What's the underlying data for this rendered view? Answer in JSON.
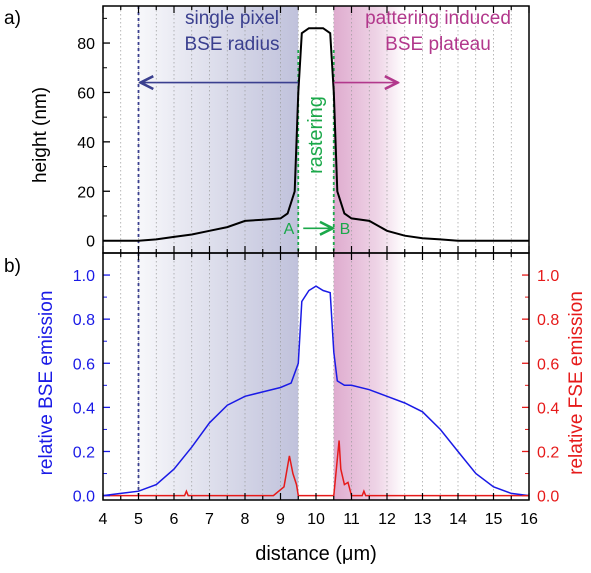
{
  "chart_data": [
    {
      "panel_label": "a)",
      "type": "line",
      "ylabel": "height (nm)",
      "ylim": [
        -5,
        95
      ],
      "yticks": [
        0,
        20,
        40,
        60,
        80
      ],
      "xlim": [
        4,
        16
      ],
      "xticks": [
        4,
        5,
        6,
        7,
        8,
        9,
        10,
        11,
        12,
        13,
        14,
        15,
        16
      ],
      "grid": "vertical dotted",
      "series": [
        {
          "color": "#000000",
          "x": [
            4,
            5,
            5.5,
            6,
            6.5,
            7,
            7.5,
            8,
            8.5,
            9,
            9.2,
            9.4,
            9.5,
            9.6,
            9.8,
            10,
            10.2,
            10.4,
            10.5,
            10.6,
            10.8,
            11,
            11.5,
            12,
            12.5,
            13,
            13.5,
            14,
            15,
            16
          ],
          "y": [
            0,
            0,
            0.5,
            1.5,
            2.5,
            4,
            5.5,
            8,
            8.5,
            9,
            11,
            20,
            60,
            84,
            86,
            86,
            86,
            84,
            60,
            20,
            11,
            9,
            8,
            4,
            2,
            1,
            0.5,
            0,
            0,
            0
          ]
        }
      ],
      "annotations": {
        "left_region_line1": "single pixel",
        "left_region_line2": "BSE radius",
        "right_region_line1": "pattering induced",
        "right_region_line2": "BSE plateau",
        "rastering": "rastering",
        "point_a": "A",
        "point_b": "B"
      },
      "regions": [
        {
          "x": [
            5,
            9.5
          ],
          "color": "#2b2f7d"
        },
        {
          "x": [
            10.5,
            12.5
          ],
          "color": "#a7327e"
        }
      ],
      "markers": {
        "dashed_line_x": 5,
        "a_x": 9.5,
        "b_x": 10.5,
        "left_arrow_x": [
          5,
          9.5
        ],
        "right_arrow_x": [
          10.5,
          12.3
        ]
      },
      "colors": {
        "left_region": "#3a3f8f",
        "right_region": "#b2388c",
        "rastering": "#1ba84a"
      }
    },
    {
      "panel_label": "b)",
      "type": "line",
      "xlabel": "distance (μm)",
      "ylabel": "relative BSE emission",
      "ylabel_right": "relative FSE emission",
      "xlim": [
        4,
        16
      ],
      "ylim": [
        -0.02,
        1.1
      ],
      "yticks": [
        "0.0",
        "0.2",
        "0.4",
        "0.6",
        "0.8",
        "1.0"
      ],
      "xticks": [
        "4",
        "5",
        "6",
        "7",
        "8",
        "9",
        "10",
        "11",
        "12",
        "13",
        "14",
        "15",
        "16"
      ],
      "grid": "vertical dotted",
      "series": [
        {
          "color": "#1a1ae6",
          "x": [
            4,
            4.5,
            5,
            5.5,
            6,
            6.5,
            7,
            7.5,
            8,
            8.5,
            9,
            9.3,
            9.5,
            9.6,
            9.8,
            10,
            10.2,
            10.4,
            10.5,
            10.6,
            10.8,
            11,
            11.5,
            12,
            12.5,
            13,
            13.5,
            14,
            14.5,
            15,
            15.5,
            16
          ],
          "y": [
            0.0,
            0.01,
            0.02,
            0.05,
            0.12,
            0.22,
            0.33,
            0.41,
            0.45,
            0.47,
            0.49,
            0.51,
            0.6,
            0.88,
            0.93,
            0.95,
            0.93,
            0.92,
            0.65,
            0.52,
            0.5,
            0.5,
            0.48,
            0.45,
            0.42,
            0.38,
            0.3,
            0.2,
            0.1,
            0.04,
            0.01,
            0.0
          ]
        },
        {
          "color": "#e61a1a",
          "axis": "right",
          "x": [
            4,
            6.3,
            6.35,
            6.4,
            8.8,
            9.1,
            9.25,
            9.35,
            9.45,
            9.5,
            10.5,
            10.55,
            10.65,
            10.7,
            10.8,
            10.9,
            11.0,
            11.3,
            11.35,
            11.4,
            16
          ],
          "y": [
            0.0,
            0.0,
            0.02,
            0.0,
            0.0,
            0.04,
            0.18,
            0.1,
            0.05,
            0.0,
            0.0,
            0.08,
            0.25,
            0.12,
            0.05,
            0.06,
            0.0,
            0.0,
            0.02,
            0.0,
            0.0
          ]
        }
      ],
      "regions": [
        {
          "x": [
            5,
            9.5
          ],
          "color": "#2b2f7d"
        },
        {
          "x": [
            10.5,
            12.5
          ],
          "color": "#a7327e"
        }
      ],
      "markers": {
        "dashed_line_x": 5
      },
      "colors": {
        "left_axis": "#1a1ae6",
        "right_axis": "#e61a1a"
      }
    }
  ]
}
